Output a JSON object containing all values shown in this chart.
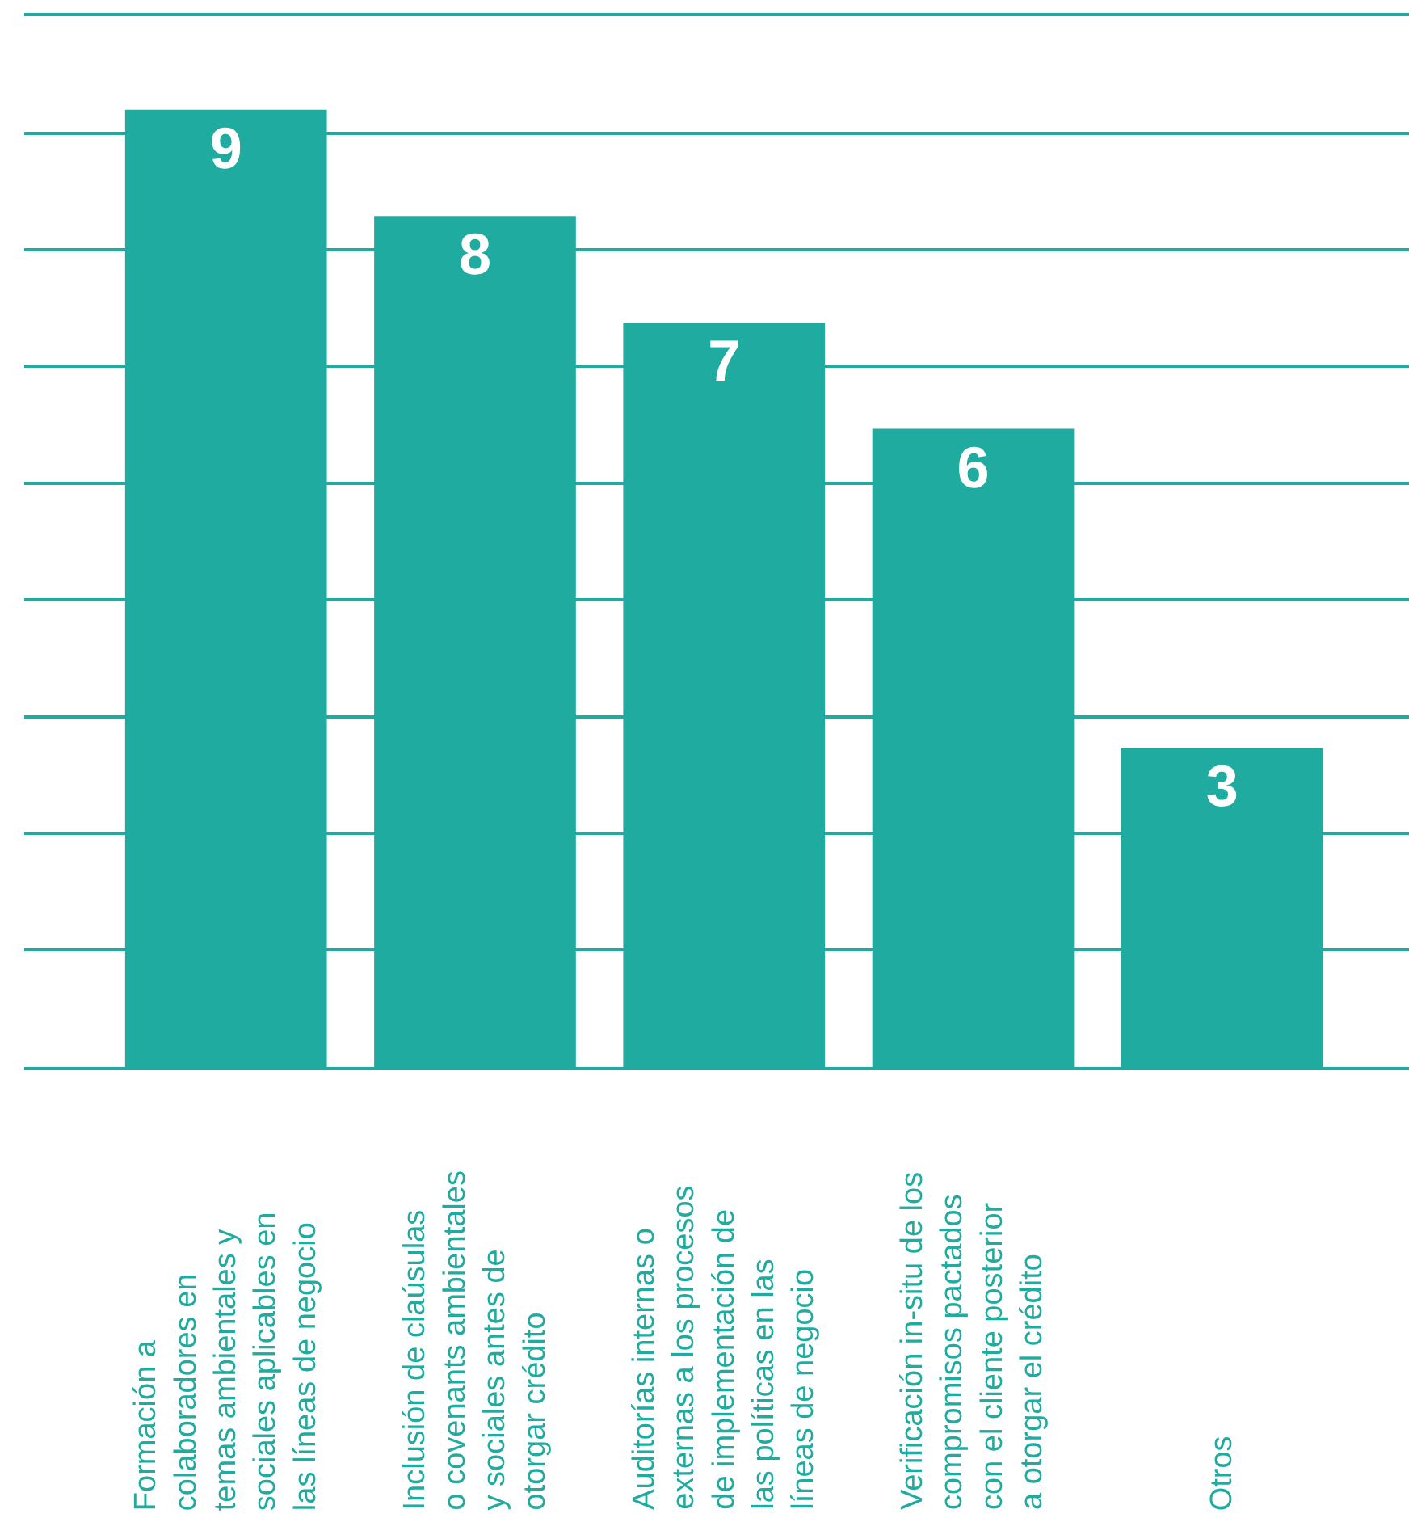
{
  "chart_data": {
    "type": "bar",
    "categories": [
      "Formación a\ncolaboradores en\ntemas ambientales y\nsociales aplicables en\nlas líneas de negocio",
      "Inclusión de claúsulas\no covenants ambientales\ny sociales antes de\notorgar crédito",
      "Auditorías internas o\nexternas a los procesos\nde implementación de\nlas políticas en las\nlíneas de negocio",
      "Verificación in-situ de los\ncompromisos pactados\ncon el cliente posterior\na otorgar el crédito",
      "Otros"
    ],
    "values": [
      9,
      8,
      7,
      6,
      3
    ],
    "color": "#20aba0",
    "data_labels": true,
    "ylim": [
      0,
      9.88
    ],
    "yticks": [
      {
        "value": 0,
        "label": null
      },
      {
        "value": 1.1,
        "label": null
      },
      {
        "value": 2.2,
        "label": null
      },
      {
        "value": 3.29,
        "label": null
      },
      {
        "value": 4.39,
        "label": null
      },
      {
        "value": 5.49,
        "label": null
      },
      {
        "value": 6.59,
        "label": null
      },
      {
        "value": 7.68,
        "label": null
      },
      {
        "value": 8.78,
        "label": null
      },
      {
        "value": 9.88,
        "label": null
      }
    ],
    "grid": "y",
    "legend": false
  }
}
